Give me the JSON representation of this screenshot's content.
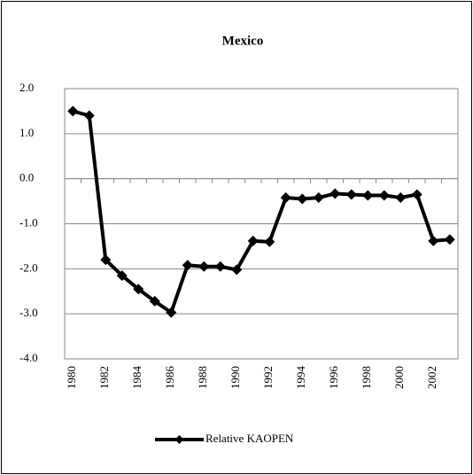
{
  "chart_data": {
    "type": "line",
    "title": "Mexico",
    "categories": [
      "1980",
      null,
      "1982",
      null,
      "1984",
      null,
      "1986",
      null,
      "1988",
      null,
      "1990",
      null,
      "1992",
      null,
      "1994",
      null,
      "1996",
      null,
      "1998",
      null,
      "2000",
      null,
      "2002",
      null
    ],
    "series": [
      {
        "name": "Relative KAOPEN",
        "color": "#000000",
        "values": [
          1.5,
          1.4,
          -1.8,
          -2.15,
          -2.45,
          -2.72,
          -2.97,
          -1.92,
          -1.95,
          -1.95,
          -2.02,
          -1.38,
          -1.4,
          -0.42,
          -0.45,
          -0.42,
          -0.33,
          -0.35,
          -0.37,
          -0.37,
          -0.42,
          -0.35,
          -1.38,
          -1.35
        ]
      }
    ],
    "ylim": [
      -4,
      2
    ],
    "yticks": [
      {
        "value": -4,
        "label": "-4.0"
      },
      {
        "value": -3,
        "label": "-3.0"
      },
      {
        "value": -2,
        "label": "-2.0"
      },
      {
        "value": -1,
        "label": "-1.0"
      },
      {
        "value": 0,
        "label": "0.0"
      },
      {
        "value": 1,
        "label": "1.0"
      },
      {
        "value": 2,
        "label": "2.0"
      }
    ],
    "grid": true,
    "legend": "bottom"
  }
}
